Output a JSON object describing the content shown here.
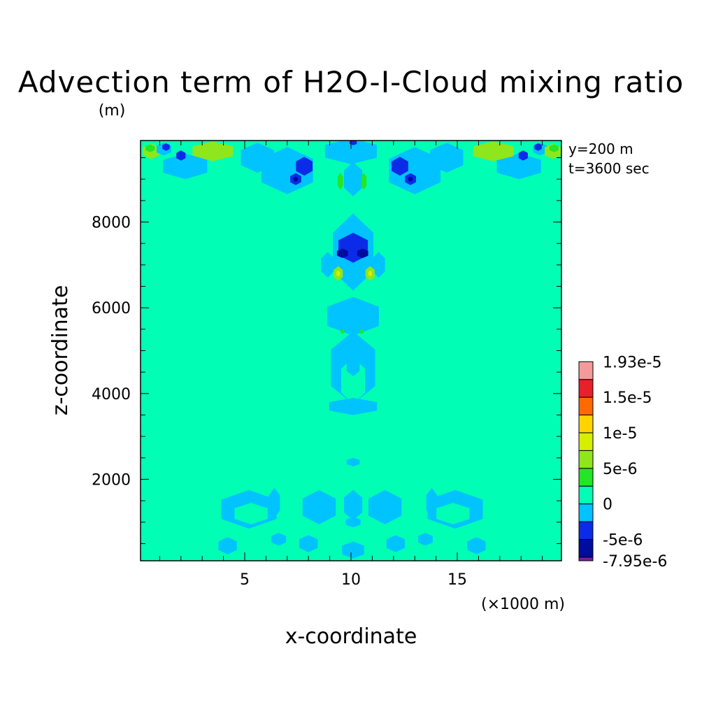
{
  "chart_data": {
    "type": "heatmap",
    "title": "Advection term of H2O-I-Cloud mixing ratio",
    "ylabel": "z-coordinate",
    "yunit": "(m)",
    "xlabel": "x-coordinate",
    "xunit": "(×1000 m)",
    "annotations": [
      "y=200 m",
      "t=3600 sec"
    ],
    "xlim": [
      0.1,
      19.9
    ],
    "ylim": [
      100,
      9900
    ],
    "xticks": [
      5,
      10,
      15
    ],
    "xtick_labels": [
      "5",
      "10",
      "15"
    ],
    "yticks": [
      2000,
      4000,
      6000,
      8000
    ],
    "ytick_labels": [
      "2000",
      "4000",
      "6000",
      "8000"
    ],
    "colorbar": {
      "labels": [
        "1.93e-5",
        "1.5e-5",
        "1e-5",
        "5e-6",
        "0",
        "-5e-6",
        "-7.95e-6"
      ],
      "label_values": [
        1.93e-05,
        1.5e-05,
        1e-05,
        5e-06,
        0,
        -5e-06,
        -7.95e-06
      ],
      "levels": [
        -7.95e-06,
        -7.5e-06,
        -5e-06,
        -2.5e-06,
        0,
        2.5e-06,
        5e-06,
        7.5e-06,
        1e-05,
        1.25e-05,
        1.5e-05,
        1.75e-05,
        1.93e-05
      ],
      "colors": [
        "#7b1fa2",
        "#000c9e",
        "#0b2be8",
        "#00c3ff",
        "#00ffb4",
        "#22e626",
        "#8fe61c",
        "#d6ee00",
        "#ffd400",
        "#ff6a00",
        "#e8202a",
        "#f49a9a"
      ]
    },
    "background_color": "#00ffb4",
    "blobs": [
      {
        "x": 0.6,
        "z": 9650,
        "rx": 0.45,
        "rz": 180,
        "color": "#8fe61c"
      },
      {
        "x": 0.55,
        "z": 9720,
        "rx": 0.25,
        "rz": 90,
        "color": "#22e626"
      },
      {
        "x": 1.2,
        "z": 9700,
        "rx": 0.4,
        "rz": 150,
        "color": "#00c3ff"
      },
      {
        "x": 1.3,
        "z": 9750,
        "rx": 0.2,
        "rz": 90,
        "color": "#0b2be8"
      },
      {
        "x": 3.5,
        "z": 9650,
        "rx": 1.1,
        "rz": 230,
        "color": "#8fe61c"
      },
      {
        "x": 2.2,
        "z": 9300,
        "rx": 1.2,
        "rz": 300,
        "color": "#00c3ff"
      },
      {
        "x": 2.0,
        "z": 9550,
        "rx": 0.25,
        "rz": 120,
        "color": "#0b2be8"
      },
      {
        "x": 5.6,
        "z": 9500,
        "rx": 0.9,
        "rz": 350,
        "color": "#00c3ff"
      },
      {
        "x": 7.0,
        "z": 9200,
        "rx": 1.4,
        "rz": 550,
        "color": "#00c3ff"
      },
      {
        "x": 7.8,
        "z": 9300,
        "rx": 0.45,
        "rz": 220,
        "color": "#0b2be8"
      },
      {
        "x": 7.4,
        "z": 9000,
        "rx": 0.3,
        "rz": 140,
        "color": "#0b2be8"
      },
      {
        "x": 7.4,
        "z": 9000,
        "rx": 0.12,
        "rz": 60,
        "color": "#000c9e"
      },
      {
        "x": 10.0,
        "z": 9650,
        "rx": 1.4,
        "rz": 300,
        "color": "#00c3ff"
      },
      {
        "x": 10.1,
        "z": 9850,
        "rx": 0.2,
        "rz": 60,
        "color": "#0b2be8"
      },
      {
        "x": 10.1,
        "z": 9000,
        "rx": 0.5,
        "rz": 400,
        "color": "#00c3ff"
      },
      {
        "x": 9.5,
        "z": 8950,
        "rx": 0.15,
        "rz": 200,
        "color": "#22e626"
      },
      {
        "x": 10.6,
        "z": 8950,
        "rx": 0.15,
        "rz": 200,
        "color": "#22e626"
      },
      {
        "x": 13.0,
        "z": 9200,
        "rx": 1.4,
        "rz": 550,
        "color": "#00c3ff"
      },
      {
        "x": 12.3,
        "z": 9300,
        "rx": 0.45,
        "rz": 220,
        "color": "#0b2be8"
      },
      {
        "x": 12.8,
        "z": 9000,
        "rx": 0.3,
        "rz": 140,
        "color": "#0b2be8"
      },
      {
        "x": 12.8,
        "z": 9000,
        "rx": 0.12,
        "rz": 60,
        "color": "#000c9e"
      },
      {
        "x": 14.5,
        "z": 9500,
        "rx": 0.9,
        "rz": 350,
        "color": "#00c3ff"
      },
      {
        "x": 17.9,
        "z": 9300,
        "rx": 1.2,
        "rz": 300,
        "color": "#00c3ff"
      },
      {
        "x": 16.7,
        "z": 9650,
        "rx": 1.1,
        "rz": 230,
        "color": "#8fe61c"
      },
      {
        "x": 18.1,
        "z": 9550,
        "rx": 0.25,
        "rz": 120,
        "color": "#0b2be8"
      },
      {
        "x": 18.9,
        "z": 9700,
        "rx": 0.4,
        "rz": 150,
        "color": "#00c3ff"
      },
      {
        "x": 18.8,
        "z": 9750,
        "rx": 0.2,
        "rz": 90,
        "color": "#0b2be8"
      },
      {
        "x": 19.5,
        "z": 9650,
        "rx": 0.45,
        "rz": 180,
        "color": "#8fe61c"
      },
      {
        "x": 19.55,
        "z": 9720,
        "rx": 0.25,
        "rz": 90,
        "color": "#22e626"
      },
      {
        "x": 10.1,
        "z": 7300,
        "rx": 1.1,
        "rz": 900,
        "color": "#00c3ff"
      },
      {
        "x": 8.9,
        "z": 7000,
        "rx": 0.35,
        "rz": 300,
        "color": "#00c3ff"
      },
      {
        "x": 11.3,
        "z": 7000,
        "rx": 0.35,
        "rz": 300,
        "color": "#00c3ff"
      },
      {
        "x": 10.1,
        "z": 7400,
        "rx": 0.8,
        "rz": 350,
        "color": "#0b2be8"
      },
      {
        "x": 9.6,
        "z": 7270,
        "rx": 0.3,
        "rz": 110,
        "color": "#000c9e"
      },
      {
        "x": 10.55,
        "z": 7270,
        "rx": 0.3,
        "rz": 110,
        "color": "#000c9e"
      },
      {
        "x": 9.4,
        "z": 6800,
        "rx": 0.25,
        "rz": 170,
        "color": "#8fe61c"
      },
      {
        "x": 9.4,
        "z": 6800,
        "rx": 0.1,
        "rz": 70,
        "color": "#d6ee00"
      },
      {
        "x": 10.9,
        "z": 6800,
        "rx": 0.25,
        "rz": 170,
        "color": "#8fe61c"
      },
      {
        "x": 10.9,
        "z": 6800,
        "rx": 0.1,
        "rz": 70,
        "color": "#d6ee00"
      },
      {
        "x": 10.1,
        "z": 5800,
        "rx": 1.4,
        "rz": 450,
        "color": "#00c3ff"
      },
      {
        "x": 9.6,
        "z": 5450,
        "rx": 0.1,
        "rz": 60,
        "color": "#22e626"
      },
      {
        "x": 10.5,
        "z": 5450,
        "rx": 0.1,
        "rz": 60,
        "color": "#22e626"
      },
      {
        "x": 10.1,
        "z": 4600,
        "rx": 1.2,
        "rz": 850,
        "color": "#00c3ff"
      },
      {
        "x": 10.1,
        "z": 4300,
        "rx": 0.65,
        "rz": 550,
        "color": "#00ffb4"
      },
      {
        "x": 10.1,
        "z": 4650,
        "rx": 0.35,
        "rz": 250,
        "color": "#00c3ff"
      },
      {
        "x": 10.1,
        "z": 3700,
        "rx": 1.3,
        "rz": 200,
        "color": "#00c3ff"
      },
      {
        "x": 5.2,
        "z": 1300,
        "rx": 1.5,
        "rz": 450,
        "color": "#00c3ff"
      },
      {
        "x": 5.3,
        "z": 1200,
        "rx": 0.9,
        "rz": 250,
        "color": "#00ffb4"
      },
      {
        "x": 6.4,
        "z": 1450,
        "rx": 0.3,
        "rz": 350,
        "color": "#00c3ff"
      },
      {
        "x": 8.5,
        "z": 1350,
        "rx": 0.9,
        "rz": 400,
        "color": "#00c3ff"
      },
      {
        "x": 10.1,
        "z": 1400,
        "rx": 0.5,
        "rz": 350,
        "color": "#00c3ff"
      },
      {
        "x": 11.6,
        "z": 1350,
        "rx": 0.9,
        "rz": 400,
        "color": "#00c3ff"
      },
      {
        "x": 13.8,
        "z": 1450,
        "rx": 0.3,
        "rz": 350,
        "color": "#00c3ff"
      },
      {
        "x": 14.9,
        "z": 1300,
        "rx": 1.5,
        "rz": 450,
        "color": "#00c3ff"
      },
      {
        "x": 14.8,
        "z": 1200,
        "rx": 0.9,
        "rz": 250,
        "color": "#00ffb4"
      },
      {
        "x": 10.1,
        "z": 2400,
        "rx": 0.35,
        "rz": 100,
        "color": "#00c3ff"
      },
      {
        "x": 10.1,
        "z": 1000,
        "rx": 0.4,
        "rz": 120,
        "color": "#00c3ff"
      },
      {
        "x": 4.2,
        "z": 450,
        "rx": 0.5,
        "rz": 200,
        "color": "#00c3ff"
      },
      {
        "x": 6.6,
        "z": 600,
        "rx": 0.4,
        "rz": 150,
        "color": "#00c3ff"
      },
      {
        "x": 8.0,
        "z": 500,
        "rx": 0.5,
        "rz": 200,
        "color": "#00c3ff"
      },
      {
        "x": 10.1,
        "z": 350,
        "rx": 0.6,
        "rz": 200,
        "color": "#00c3ff"
      },
      {
        "x": 12.1,
        "z": 500,
        "rx": 0.5,
        "rz": 200,
        "color": "#00c3ff"
      },
      {
        "x": 13.5,
        "z": 600,
        "rx": 0.4,
        "rz": 150,
        "color": "#00c3ff"
      },
      {
        "x": 15.9,
        "z": 450,
        "rx": 0.5,
        "rz": 200,
        "color": "#00c3ff"
      }
    ]
  }
}
